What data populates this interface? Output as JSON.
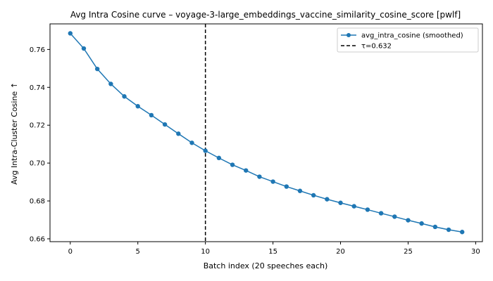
{
  "chart_data": {
    "type": "line",
    "title": "Avg Intra Cosine curve – voyage-3-large_embeddings_vaccine_similarity_cosine_score [pwlf]",
    "xlabel": "Batch index (20 speeches each)",
    "ylabel": "Avg Intra-Cluster Cosine ↑",
    "xlim": [
      -1.5,
      30.5
    ],
    "ylim": [
      0.6585,
      0.7735
    ],
    "x_ticks": [
      0,
      5,
      10,
      15,
      20,
      25,
      30
    ],
    "x_tick_labels": [
      "0",
      "5",
      "10",
      "15",
      "20",
      "25",
      "30"
    ],
    "y_ticks": [
      0.66,
      0.68,
      0.7,
      0.72,
      0.74,
      0.76
    ],
    "y_tick_labels": [
      "0.66",
      "0.68",
      "0.70",
      "0.72",
      "0.74",
      "0.76"
    ],
    "grid": false,
    "legend_position": "top-right",
    "series": [
      {
        "name": "avg_intra_cosine (smoothed)",
        "color": "#1f77b4",
        "marker": "circle",
        "x": [
          0,
          1,
          2,
          3,
          4,
          5,
          6,
          7,
          8,
          9,
          10,
          11,
          12,
          13,
          14,
          15,
          16,
          17,
          18,
          19,
          20,
          21,
          22,
          23,
          24,
          25,
          26,
          27,
          28,
          29
        ],
        "values": [
          0.7685,
          0.7605,
          0.7497,
          0.7418,
          0.7352,
          0.73,
          0.7253,
          0.7204,
          0.7155,
          0.7107,
          0.7065,
          0.7027,
          0.6991,
          0.6961,
          0.6928,
          0.6902,
          0.6876,
          0.6853,
          0.683,
          0.6809,
          0.679,
          0.6772,
          0.6754,
          0.6735,
          0.6717,
          0.6698,
          0.6681,
          0.6663,
          0.6648,
          0.6636
        ]
      }
    ],
    "vlines": [
      {
        "name": "τ=0.632",
        "x": 10,
        "color": "#000000",
        "style": "dashed"
      }
    ]
  }
}
